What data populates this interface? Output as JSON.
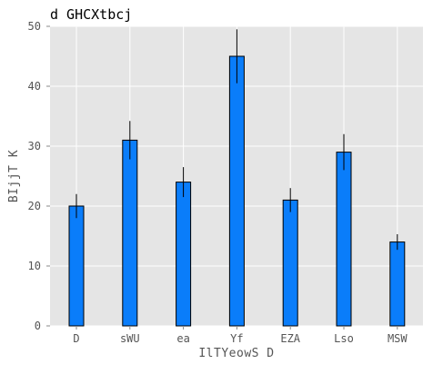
{
  "chart_data": {
    "type": "bar",
    "title": "d GHCXtbcj",
    "xlabel": "IlTYeowS D",
    "ylabel": "BIjjT K",
    "categories": [
      "D",
      "sWU",
      "ea",
      "Yf",
      "EZA",
      "Lso",
      "MSW"
    ],
    "values": [
      20,
      31,
      24,
      45,
      21,
      29,
      14
    ],
    "error": [
      2,
      3.2,
      2.5,
      4.5,
      2,
      3,
      1.3
    ],
    "ylim": [
      0,
      50
    ],
    "yticks": [
      0,
      10,
      20,
      30,
      40,
      50
    ],
    "grid": true,
    "colors": {
      "bar": "#0a7dfa",
      "background": "#e5e5e5",
      "grid": "#ffffff",
      "errorbar": "#000000"
    }
  }
}
